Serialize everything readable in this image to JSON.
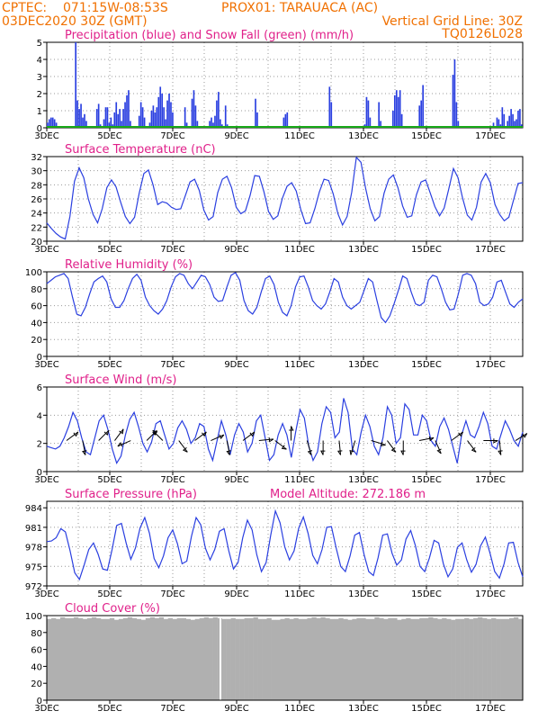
{
  "header": {
    "source": "CPTEC:",
    "coords": "071:15W-08:53S",
    "station": "PROX01: TARAUACA (AC)",
    "run": "03DEC2020 30Z (GMT)",
    "grid_note": "Vertical Grid Line: 30Z",
    "code": "TQ0126L028"
  },
  "colors": {
    "header": "#f07000",
    "panel_title": "#e0208a",
    "line": "#2a3fe0",
    "snow": "#17a817",
    "cloud": "#b0b0b0"
  },
  "chart_data": [
    {
      "id": "precip",
      "type": "bar",
      "title": "Precipitation (blue) and Snow Fall (green) (mm/h)",
      "xlabel": "",
      "ylabel": "",
      "ylim": [
        0,
        5
      ],
      "yticks": [
        0,
        1,
        2,
        3,
        4,
        5
      ],
      "xticks": [
        "3DEC",
        "5DEC",
        "7DEC",
        "9DEC",
        "11DEC",
        "13DEC",
        "15DEC",
        "17DEC"
      ],
      "grid": true,
      "series": [
        {
          "name": "Precipitation",
          "color": "#2a3fe0",
          "values": [
            0.3,
            0.5,
            0.6,
            0.6,
            0.5,
            0.3,
            0,
            0,
            0,
            0,
            0,
            0,
            0,
            0,
            0,
            0,
            5.0,
            1.6,
            1.1,
            1.4,
            0.6,
            0.8,
            0.4,
            0,
            0,
            0,
            0,
            0,
            1.1,
            1.4,
            0.2,
            0,
            0.5,
            1.2,
            1.2,
            0.3,
            0.6,
            0.2,
            0.9,
            1.5,
            0.8,
            1.1,
            0.4,
            1.1,
            1.5,
            1.9,
            2.2,
            0.4,
            0,
            0,
            0,
            0,
            0.7,
            1.5,
            1.2,
            0.6,
            0,
            0,
            0.3,
            1.0,
            1.3,
            0.9,
            1.2,
            1.8,
            2.4,
            2.0,
            1.2,
            0.5,
            1.6,
            2.0,
            1.5,
            0.9,
            0,
            0,
            0,
            0,
            0,
            0,
            1.2,
            0.3,
            0,
            0,
            1.7,
            2.2,
            1.3,
            0.4,
            0,
            0,
            0,
            0,
            0,
            0,
            0.4,
            0.6,
            0.3,
            0.7,
            1.6,
            2.1,
            0.5,
            0.2,
            0,
            1.3,
            0.2,
            0,
            0,
            0,
            0,
            0,
            0,
            0,
            0,
            0,
            0,
            0,
            0,
            0,
            0,
            0,
            1.7,
            0.9,
            0,
            0,
            0,
            0,
            0,
            0,
            0,
            0,
            0,
            0,
            0,
            0,
            0,
            0,
            0.6,
            0.8,
            0.9,
            0,
            0,
            0,
            0,
            0,
            0,
            0,
            0,
            0,
            0,
            0,
            0,
            0,
            0,
            0,
            0,
            0,
            0,
            0,
            0,
            0,
            0,
            0,
            2.4,
            1.5,
            0,
            0,
            0,
            0,
            0,
            0,
            0,
            0,
            0,
            0,
            0,
            0,
            0,
            0,
            0,
            0,
            0,
            0,
            0.2,
            1.8,
            1.6,
            0.6,
            0,
            0,
            0,
            0,
            1.5,
            0.4,
            0,
            0,
            0,
            0,
            0,
            0,
            1.0,
            1.9,
            2.2,
            1.8,
            2.2,
            0.8,
            0,
            0,
            0,
            0,
            0,
            0,
            0,
            0,
            0,
            1.3,
            1.6,
            2.5,
            0,
            0,
            0,
            0,
            0,
            0,
            0,
            0,
            0,
            0,
            0,
            0,
            0,
            0,
            0,
            0,
            3.1,
            4.0,
            1.5,
            0.4,
            0,
            0,
            0,
            0,
            0,
            0,
            0,
            0,
            0,
            0,
            0,
            0,
            0,
            0,
            0,
            0,
            0,
            0,
            0,
            0.3,
            0,
            0.6,
            0.5,
            0.2,
            1.2,
            0.8,
            0,
            0.4,
            0.7,
            1.1,
            0.8,
            0.4,
            0.5,
            1.0,
            1.1,
            0.2
          ]
        },
        {
          "name": "Snow Fall",
          "color": "#17a817",
          "values": [
            0
          ]
        }
      ]
    },
    {
      "id": "temp",
      "type": "line",
      "title": "Surface Temperature (nC)",
      "xlabel": "",
      "ylabel": "",
      "ylim": [
        20,
        32
      ],
      "yticks": [
        20,
        22,
        24,
        26,
        28,
        30,
        32
      ],
      "xticks": [
        "3DEC",
        "5DEC",
        "7DEC",
        "9DEC",
        "11DEC",
        "13DEC",
        "15DEC",
        "17DEC"
      ],
      "grid": true,
      "series": [
        {
          "name": "Temperature",
          "color": "#2a3fe0",
          "values": [
            22.6,
            21.8,
            21.1,
            20.6,
            20.3,
            23.5,
            28.5,
            30.4,
            29.0,
            26.0,
            23.8,
            22.6,
            24.6,
            27.6,
            28.7,
            27.7,
            25.5,
            23.5,
            22.5,
            23.4,
            26.8,
            29.6,
            30.1,
            28.0,
            25.2,
            25.6,
            25.4,
            24.8,
            24.5,
            24.6,
            26.5,
            28.4,
            28.8,
            27.2,
            24.4,
            23.0,
            23.5,
            26.9,
            28.8,
            29.2,
            27.6,
            24.8,
            23.9,
            24.3,
            26.5,
            29.3,
            29.2,
            27.0,
            24.2,
            23.1,
            23.6,
            26.1,
            27.8,
            28.3,
            27.1,
            24.4,
            22.5,
            22.6,
            24.6,
            27.0,
            28.8,
            28.6,
            26.7,
            23.9,
            22.3,
            23.5,
            27.0,
            31.9,
            31.2,
            27.5,
            24.6,
            22.9,
            23.5,
            26.8,
            28.8,
            29.4,
            27.6,
            25.0,
            23.4,
            23.6,
            26.6,
            28.4,
            28.7,
            26.8,
            24.9,
            23.6,
            24.7,
            27.4,
            30.3,
            29.0,
            26.1,
            23.7,
            23.0,
            24.8,
            28.4,
            29.6,
            28.3,
            25.2,
            23.8,
            22.9,
            23.4,
            25.8,
            28.2,
            28.3
          ]
        }
      ]
    },
    {
      "id": "rh",
      "type": "line",
      "title": "Relative Humidity (%)",
      "xlabel": "",
      "ylabel": "",
      "ylim": [
        0,
        100
      ],
      "yticks": [
        0,
        20,
        40,
        60,
        80,
        100
      ],
      "xticks": [
        "3DEC",
        "5DEC",
        "7DEC",
        "9DEC",
        "11DEC",
        "13DEC",
        "15DEC",
        "17DEC"
      ],
      "grid": true,
      "series": [
        {
          "name": "Relative Humidity",
          "color": "#2a3fe0",
          "values": [
            86,
            90,
            94,
            96,
            98,
            92,
            70,
            50,
            48,
            58,
            74,
            88,
            92,
            95,
            88,
            68,
            58,
            58,
            66,
            80,
            92,
            97,
            90,
            70,
            60,
            54,
            50,
            56,
            66,
            82,
            94,
            98,
            96,
            86,
            80,
            88,
            96,
            94,
            85,
            70,
            65,
            66,
            82,
            96,
            99,
            90,
            66,
            54,
            50,
            58,
            76,
            92,
            95,
            85,
            64,
            52,
            48,
            60,
            82,
            94,
            95,
            82,
            66,
            60,
            56,
            62,
            76,
            92,
            88,
            70,
            60,
            56,
            60,
            64,
            78,
            92,
            88,
            66,
            46,
            40,
            48,
            62,
            78,
            95,
            92,
            76,
            62,
            60,
            64,
            90,
            96,
            94,
            80,
            64,
            55,
            56,
            74,
            96,
            98,
            96,
            86,
            64,
            60,
            62,
            70,
            88,
            90,
            76,
            62,
            58,
            64,
            68
          ]
        }
      ]
    },
    {
      "id": "wind",
      "type": "line",
      "title": "Surface Wind (m/s)",
      "xlabel": "",
      "ylabel": "",
      "ylim": [
        0,
        6
      ],
      "yticks": [
        0,
        2,
        4,
        6
      ],
      "xticks": [
        "3DEC",
        "5DEC",
        "7DEC",
        "9DEC",
        "11DEC",
        "13DEC",
        "15DEC",
        "17DEC"
      ],
      "grid": true,
      "series": [
        {
          "name": "Wind Speed",
          "color": "#2a3fe0",
          "values": [
            1.8,
            1.7,
            1.6,
            1.8,
            2.4,
            3.2,
            4.2,
            3.6,
            2.4,
            1.4,
            1.2,
            2.4,
            3.6,
            4.0,
            3.0,
            1.6,
            0.6,
            1.1,
            2.6,
            3.7,
            4.2,
            3.2,
            2.0,
            1.4,
            2.1,
            3.4,
            3.6,
            2.6,
            1.6,
            2.0,
            3.1,
            3.6,
            3.0,
            2.0,
            2.4,
            3.4,
            3.2,
            1.6,
            0.8,
            2.2,
            3.6,
            2.6,
            1.2,
            2.6,
            3.4,
            2.8,
            1.4,
            2.0,
            3.6,
            4.0,
            2.4,
            0.8,
            1.2,
            2.6,
            3.4,
            2.6,
            1.0,
            2.8,
            4.4,
            3.8,
            1.8,
            0.8,
            1.4,
            3.4,
            4.6,
            4.2,
            2.4,
            2.8,
            5.2,
            4.2,
            1.6,
            1.2,
            2.8,
            4.0,
            3.2,
            1.8,
            1.2,
            2.4,
            4.6,
            4.0,
            2.0,
            2.4,
            4.8,
            4.4,
            2.6,
            2.6,
            4.0,
            3.6,
            2.2,
            1.8,
            3.2,
            3.8,
            3.0,
            1.8,
            0.6,
            2.6,
            3.6,
            2.6,
            2.4,
            3.2,
            4.2,
            3.4,
            1.8,
            1.6,
            2.6,
            3.6,
            3.0,
            2.2,
            1.8,
            2.8
          ]
        },
        {
          "name": "Wind Vectors",
          "color": "#000000",
          "vectors": [
            {
              "u": 0.8,
              "v": 0.6
            },
            {
              "u": 0.2,
              "v": -1.0
            },
            {
              "u": 0.7,
              "v": 0.7
            },
            {
              "u": 0.6,
              "v": 0.8
            },
            {
              "u": -0.9,
              "v": -0.4
            },
            {
              "u": 0.7,
              "v": 0.7
            },
            {
              "u": -0.7,
              "v": 0.7
            },
            {
              "u": 0.6,
              "v": -0.8
            },
            {
              "u": 0.8,
              "v": 0.6
            },
            {
              "u": 0.9,
              "v": 0.4
            },
            {
              "u": 0.2,
              "v": -1.0
            },
            {
              "u": 0.8,
              "v": 0.6
            },
            {
              "u": 1.0,
              "v": 0.1
            },
            {
              "u": 0.8,
              "v": -0.6
            },
            {
              "u": 0.0,
              "v": 1.0
            },
            {
              "u": 0.3,
              "v": -1.0
            },
            {
              "u": 0.0,
              "v": -1.0
            },
            {
              "u": 0.1,
              "v": -1.0
            },
            {
              "u": -0.3,
              "v": -1.0
            },
            {
              "u": 1.0,
              "v": -0.3
            },
            {
              "u": 0.6,
              "v": -0.8
            },
            {
              "u": 0.0,
              "v": -1.0
            },
            {
              "u": 1.0,
              "v": 0.2
            },
            {
              "u": 0.4,
              "v": -0.9
            },
            {
              "u": 0.8,
              "v": 0.6
            },
            {
              "u": 0.6,
              "v": -0.8
            },
            {
              "u": 1.0,
              "v": 0.0
            },
            {
              "u": 0.1,
              "v": -1.0
            },
            {
              "u": 0.8,
              "v": 0.5
            }
          ]
        }
      ]
    },
    {
      "id": "pressure",
      "type": "line",
      "title": "Surface Pressure (hPa)",
      "annotation": "Model Altitude: 272.186 m",
      "xlabel": "",
      "ylabel": "",
      "ylim": [
        972,
        985
      ],
      "yticks": [
        972,
        975,
        978,
        981,
        984
      ],
      "xticks": [
        "3DEC",
        "5DEC",
        "7DEC",
        "9DEC",
        "11DEC",
        "13DEC",
        "15DEC",
        "17DEC"
      ],
      "grid": true,
      "series": [
        {
          "name": "Pressure",
          "color": "#2a3fe0",
          "values": [
            978.8,
            978.9,
            979.4,
            980.8,
            980.3,
            977.4,
            974.0,
            973.0,
            975.2,
            977.6,
            978.6,
            976.9,
            974.6,
            974.4,
            977.6,
            981.3,
            981.6,
            978.6,
            976.1,
            977.8,
            980.9,
            982.5,
            980.1,
            976.2,
            974.8,
            976.6,
            979.4,
            980.6,
            978.5,
            975.4,
            975.8,
            979.6,
            982.5,
            981.4,
            977.8,
            976.0,
            977.6,
            980.4,
            980.8,
            977.4,
            974.6,
            975.6,
            979.4,
            982.1,
            980.6,
            976.8,
            974.2,
            975.6,
            979.8,
            983.5,
            981.7,
            978.0,
            976.0,
            977.4,
            980.9,
            982.6,
            980.1,
            976.7,
            975.4,
            977.6,
            981.0,
            981.1,
            977.9,
            975.0,
            974.2,
            976.6,
            979.8,
            980.2,
            976.8,
            974.2,
            973.6,
            976.3,
            979.8,
            980.0,
            977.0,
            975.2,
            976.0,
            979.2,
            980.5,
            978.2,
            975.0,
            974.2,
            976.3,
            979.0,
            978.6,
            975.4,
            973.4,
            974.6,
            977.9,
            978.6,
            976.0,
            974.1,
            975.3,
            978.2,
            979.5,
            977.0,
            974.2,
            973.2,
            975.4,
            978.6,
            978.7,
            975.6,
            973.4
          ]
        }
      ]
    },
    {
      "id": "cloud",
      "type": "area",
      "title": "Cloud Cover (%)",
      "xlabel": "",
      "ylabel": "",
      "ylim": [
        0,
        100
      ],
      "yticks": [
        0,
        20,
        40,
        60,
        80,
        100
      ],
      "xticks": [
        "3DEC",
        "5DEC",
        "7DEC",
        "9DEC",
        "11DEC",
        "13DEC",
        "15DEC",
        "17DEC"
      ],
      "grid": false,
      "series": [
        {
          "name": "Cloud Cover",
          "color": "#b0b0b0",
          "values": [
            96,
            97,
            96,
            98,
            97,
            97,
            98,
            97,
            96,
            97,
            98,
            97,
            96,
            96,
            97,
            95,
            96,
            97,
            98,
            97,
            96,
            95,
            97,
            98,
            97,
            98,
            96,
            97,
            96,
            97,
            97,
            96,
            95,
            96,
            97,
            98,
            97,
            98,
            97,
            96,
            96,
            97,
            96,
            96,
            97,
            97,
            98,
            96,
            96,
            97,
            95,
            95,
            96,
            97,
            96,
            97,
            96,
            96,
            97,
            98,
            97,
            98,
            97,
            96,
            96,
            97,
            96,
            95,
            96,
            97,
            97,
            96,
            96,
            98,
            97,
            96,
            97,
            97,
            95,
            96,
            97,
            96,
            96,
            97,
            97,
            98,
            97,
            96,
            97,
            96,
            95,
            96,
            96,
            97,
            96,
            97,
            98,
            97,
            96,
            97,
            96,
            96,
            96,
            97,
            98,
            96
          ]
        }
      ]
    }
  ]
}
